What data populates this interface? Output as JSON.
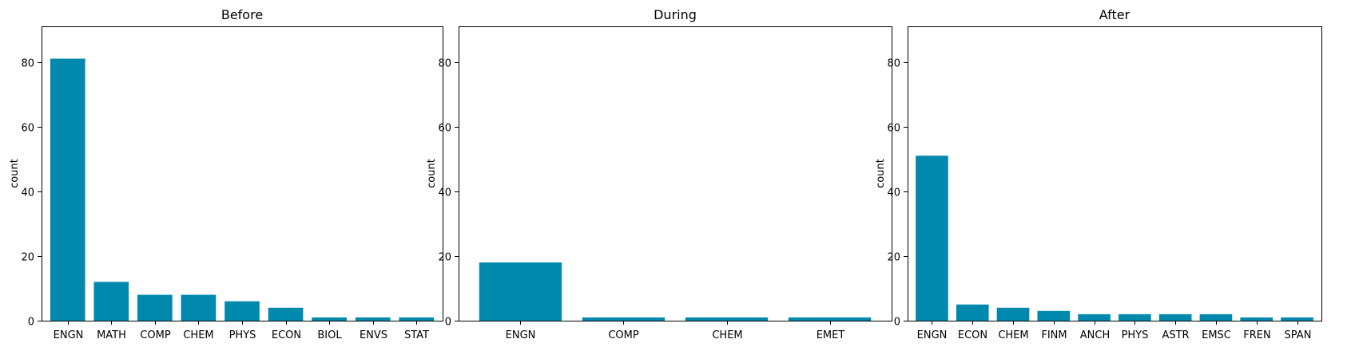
{
  "chart_data": [
    {
      "type": "bar",
      "title": "Before",
      "xlabel": "",
      "ylabel": "count",
      "ylim": [
        0,
        91
      ],
      "yticks": [
        0,
        20,
        40,
        60,
        80
      ],
      "categories": [
        "ENGN",
        "MATH",
        "COMP",
        "CHEM",
        "PHYS",
        "ECON",
        "BIOL",
        "ENVS",
        "STAT"
      ],
      "values": [
        81,
        12,
        8,
        8,
        6,
        4,
        1,
        1,
        1
      ],
      "color": "#0088ad",
      "grid": false
    },
    {
      "type": "bar",
      "title": "During",
      "xlabel": "",
      "ylabel": "count",
      "ylim": [
        0,
        91
      ],
      "yticks": [
        0,
        20,
        40,
        60,
        80
      ],
      "categories": [
        "ENGN",
        "COMP",
        "CHEM",
        "EMET"
      ],
      "values": [
        18,
        1,
        1,
        1
      ],
      "color": "#0088ad",
      "grid": false
    },
    {
      "type": "bar",
      "title": "After",
      "xlabel": "",
      "ylabel": "count",
      "ylim": [
        0,
        91
      ],
      "yticks": [
        0,
        20,
        40,
        60,
        80
      ],
      "categories": [
        "ENGN",
        "ECON",
        "CHEM",
        "FINM",
        "ANCH",
        "PHYS",
        "ASTR",
        "EMSC",
        "FREN",
        "SPAN"
      ],
      "values": [
        51,
        5,
        4,
        3,
        2,
        2,
        2,
        2,
        1,
        1
      ],
      "color": "#0088ad",
      "grid": false
    }
  ]
}
